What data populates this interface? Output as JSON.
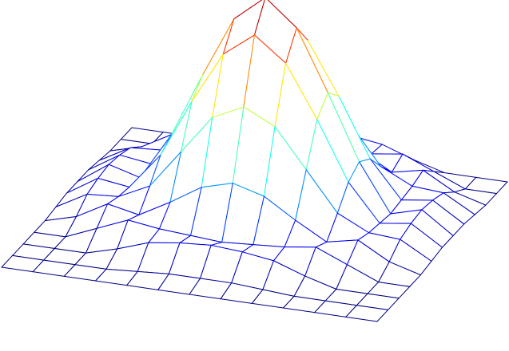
{
  "chart_data": {
    "type": "surface",
    "colormap": "jet",
    "z": [
      [
        0,
        0,
        0,
        0.04,
        0.09,
        0.11,
        0.12,
        0.11,
        0.09,
        0.04,
        0,
        0,
        0
      ],
      [
        0,
        0,
        0.06,
        0.12,
        0.1,
        0.09,
        0.08,
        0.09,
        0.1,
        0.12,
        0.06,
        0,
        0
      ],
      [
        0,
        0.04,
        0.12,
        0.09,
        0.17,
        0.26,
        0.3,
        0.26,
        0.17,
        0.09,
        0.12,
        0.04,
        0
      ],
      [
        0.01,
        0.09,
        0.1,
        0.17,
        0.35,
        0.53,
        0.6,
        0.53,
        0.35,
        0.17,
        0.1,
        0.09,
        0.01
      ],
      [
        0.02,
        0.11,
        0.09,
        0.26,
        0.53,
        0.77,
        0.88,
        0.77,
        0.53,
        0.26,
        0.09,
        0.11,
        0.02
      ],
      [
        0.02,
        0.12,
        0.08,
        0.3,
        0.6,
        0.88,
        1,
        0.88,
        0.6,
        0.3,
        0.08,
        0.12,
        0.02
      ],
      [
        0.02,
        0.11,
        0.09,
        0.26,
        0.53,
        0.77,
        0.88,
        0.77,
        0.53,
        0.26,
        0.09,
        0.11,
        0.02
      ],
      [
        0.01,
        0.09,
        0.1,
        0.17,
        0.35,
        0.53,
        0.6,
        0.53,
        0.35,
        0.17,
        0.1,
        0.09,
        0.01
      ],
      [
        0,
        0.04,
        0.12,
        0.09,
        0.17,
        0.26,
        0.3,
        0.26,
        0.17,
        0.09,
        0.12,
        0.04,
        0
      ],
      [
        0,
        0,
        0.06,
        0.12,
        0.1,
        0.09,
        0.08,
        0.09,
        0.1,
        0.12,
        0.06,
        0,
        0
      ],
      [
        0,
        0,
        0,
        0.04,
        0.09,
        0.11,
        0.12,
        0.11,
        0.09,
        0.04,
        0,
        0,
        0
      ],
      [
        0,
        0,
        0,
        0,
        0.01,
        0.02,
        0.02,
        0.02,
        0.01,
        0,
        0,
        0,
        0
      ],
      [
        0,
        0,
        0,
        0,
        0,
        0,
        0,
        0,
        0,
        0,
        0,
        0,
        0
      ]
    ]
  }
}
